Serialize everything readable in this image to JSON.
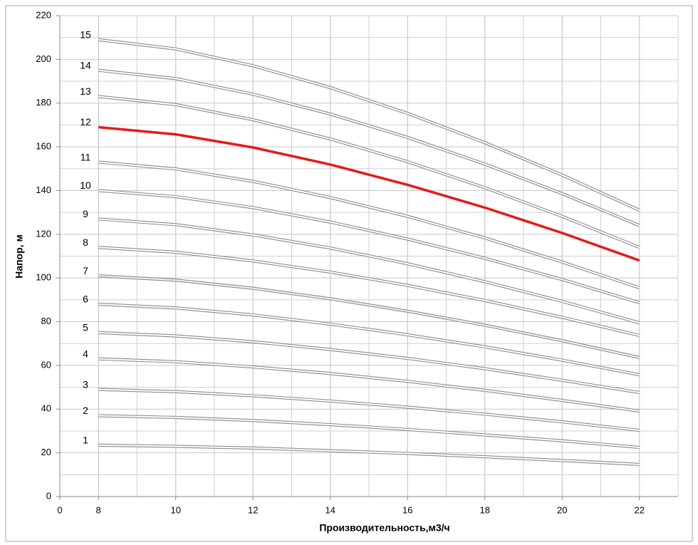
{
  "chart_data": {
    "type": "line",
    "x_label": "Производительность,м3/ч",
    "y_label": "Напор, м",
    "x": [
      8,
      10,
      12,
      14,
      16,
      18,
      20,
      22
    ],
    "xlim": [
      7,
      23
    ],
    "xticks": [
      {
        "value": 7,
        "label": "0"
      },
      8,
      10,
      12,
      14,
      16,
      18,
      20,
      22
    ],
    "ylim": [
      0,
      220
    ],
    "yticks": [
      0,
      20,
      40,
      60,
      80,
      100,
      120,
      140,
      160,
      180,
      200,
      220
    ],
    "grid": true,
    "minor_grid": true,
    "series": [
      {
        "name": "1",
        "color": "#ffffff",
        "values": [
          23.5,
          23.0,
          22.2,
          21.0,
          19.7,
          18.2,
          16.5,
          14.7
        ]
      },
      {
        "name": "2",
        "color": "#ffffff",
        "values": [
          37,
          36.2,
          34.8,
          32.9,
          30.7,
          28.2,
          25.5,
          22.5
        ]
      },
      {
        "name": "3",
        "color": "#ffffff",
        "values": [
          49,
          48.0,
          46.1,
          43.7,
          40.9,
          37.7,
          34.2,
          30.3
        ]
      },
      {
        "name": "4",
        "color": "#ffffff",
        "values": [
          63,
          61.7,
          59.3,
          56.3,
          52.7,
          48.6,
          44.0,
          39.1
        ]
      },
      {
        "name": "5",
        "color": "#ffffff",
        "values": [
          75,
          73.5,
          70.8,
          67.3,
          63.2,
          58.5,
          53.2,
          47.6
        ]
      },
      {
        "name": "6",
        "color": "#ffffff",
        "values": [
          88,
          86.3,
          83.1,
          78.9,
          74.0,
          68.5,
          62.4,
          55.7
        ]
      },
      {
        "name": "7",
        "color": "#f4f4f4",
        "values": [
          101,
          99.0,
          95.3,
          90.5,
          84.8,
          78.4,
          71.3,
          63.6
        ]
      },
      {
        "name": "8",
        "color": "#ffffff",
        "values": [
          114,
          111.8,
          107.8,
          102.7,
          96.6,
          89.7,
          82.0,
          73.7
        ]
      },
      {
        "name": "9",
        "color": "#ffffff",
        "values": [
          127,
          124.4,
          119.7,
          113.7,
          106.5,
          98.3,
          89.3,
          79.5
        ]
      },
      {
        "name": "10",
        "color": "#ffffff",
        "values": [
          140,
          137.2,
          132.2,
          125.6,
          117.8,
          109.0,
          99.3,
          88.7
        ]
      },
      {
        "name": "11",
        "color": "#ffffff",
        "values": [
          153,
          149.9,
          144.2,
          136.8,
          128.2,
          118.3,
          107.3,
          95.5
        ]
      },
      {
        "name": "12",
        "color": "#e41a1a",
        "values": [
          169,
          165.7,
          159.7,
          151.9,
          142.6,
          132.2,
          120.6,
          108
        ]
      },
      {
        "name": "13",
        "color": "#ffffff",
        "values": [
          183,
          179.3,
          172.4,
          163.6,
          153.2,
          141.3,
          128.2,
          114
        ]
      },
      {
        "name": "14",
        "color": "#ffffff",
        "values": [
          195,
          191.2,
          184.1,
          175.0,
          164.3,
          152.1,
          138.6,
          124
        ]
      },
      {
        "name": "15",
        "color": "#ffffff",
        "values": [
          209,
          204.8,
          197.1,
          187.1,
          175.3,
          161.9,
          147.1,
          131
        ]
      }
    ]
  }
}
